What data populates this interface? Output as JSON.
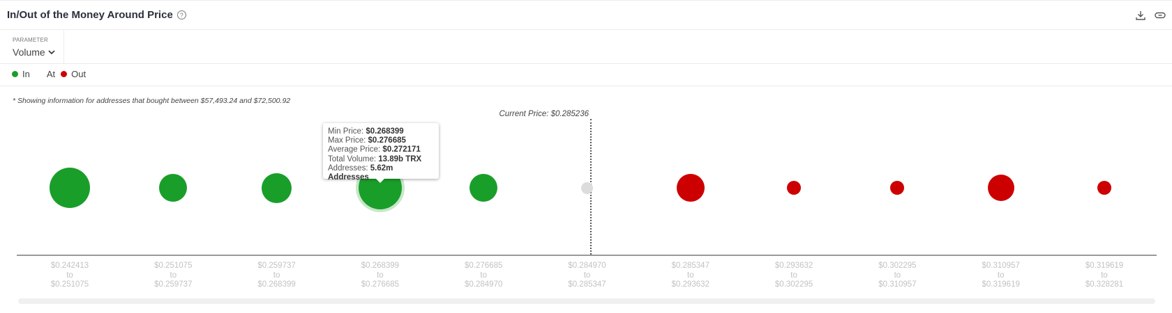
{
  "header": {
    "title": "In/Out of the Money Around Price",
    "help_icon": "question-circle-icon",
    "download_icon": "download-icon",
    "link_icon": "link-icon"
  },
  "parameter": {
    "label": "PARAMETER",
    "value": "Volume"
  },
  "legend": [
    {
      "label": "In",
      "color": "#1a9e2a"
    },
    {
      "label": "At",
      "color": "#dcdcdc"
    },
    {
      "label": "Out",
      "color": "#cc0000"
    }
  ],
  "note": "* Showing information for addresses that bought between $57,493.24 and $72,500.92",
  "current_price": "Current Price: $0.285236",
  "chart_data": {
    "type": "bubble",
    "current_price": 0.285236,
    "categories": [
      {
        "from": "$0.242413",
        "to": "$0.251075",
        "status": "in"
      },
      {
        "from": "$0.251075",
        "to": "$0.259737",
        "status": "in"
      },
      {
        "from": "$0.259737",
        "to": "$0.268399",
        "status": "in"
      },
      {
        "from": "$0.268399",
        "to": "$0.276685",
        "status": "in"
      },
      {
        "from": "$0.276685",
        "to": "$0.284970",
        "status": "in"
      },
      {
        "from": "$0.284970",
        "to": "$0.285347",
        "status": "at"
      },
      {
        "from": "$0.285347",
        "to": "$0.293632",
        "status": "out"
      },
      {
        "from": "$0.293632",
        "to": "$0.302295",
        "status": "out"
      },
      {
        "from": "$0.302295",
        "to": "$0.310957",
        "status": "out"
      },
      {
        "from": "$0.310957",
        "to": "$0.319619",
        "status": "out"
      },
      {
        "from": "$0.319619",
        "to": "$0.328281",
        "status": "out"
      }
    ],
    "to_word": "to"
  },
  "tooltip": {
    "min_label": "Min Price: ",
    "min": "$0.268399",
    "max_label": "Max Price: ",
    "max": "$0.276685",
    "avg_label": "Average Price: ",
    "avg": "$0.272171",
    "vol_label": "Total Volume: ",
    "vol": "13.89b TRX",
    "addr_label": "Addresses: ",
    "addr": "5.62m Addresses"
  }
}
